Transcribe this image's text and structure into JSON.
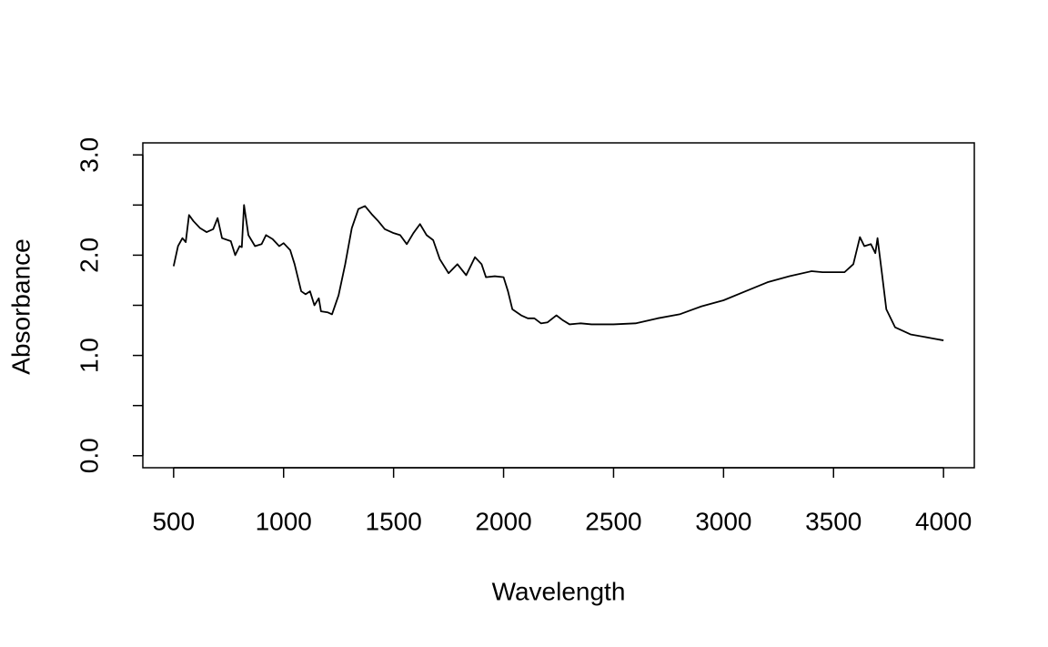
{
  "chart_data": {
    "type": "line",
    "xlabel": "Wavelength",
    "ylabel": "Absorbance",
    "x": [
      500,
      520,
      540,
      555,
      570,
      590,
      620,
      650,
      680,
      700,
      720,
      760,
      780,
      800,
      810,
      820,
      840,
      870,
      900,
      920,
      950,
      980,
      1000,
      1030,
      1050,
      1080,
      1100,
      1120,
      1140,
      1160,
      1170,
      1200,
      1220,
      1250,
      1280,
      1310,
      1340,
      1370,
      1400,
      1430,
      1460,
      1500,
      1530,
      1560,
      1590,
      1620,
      1650,
      1680,
      1710,
      1750,
      1790,
      1830,
      1870,
      1900,
      1920,
      1960,
      2000,
      2020,
      2040,
      2080,
      2110,
      2140,
      2170,
      2200,
      2240,
      2270,
      2300,
      2350,
      2400,
      2500,
      2600,
      2700,
      2800,
      2900,
      3000,
      3100,
      3200,
      3300,
      3400,
      3450,
      3550,
      3590,
      3620,
      3640,
      3670,
      3690,
      3700,
      3720,
      3740,
      3780,
      3850,
      3950,
      4000
    ],
    "series": [
      {
        "color": "#000000",
        "values": [
          1.89,
          2.09,
          2.17,
          2.13,
          2.4,
          2.34,
          2.27,
          2.23,
          2.26,
          2.37,
          2.17,
          2.14,
          2.0,
          2.09,
          2.08,
          2.5,
          2.2,
          2.09,
          2.11,
          2.2,
          2.16,
          2.09,
          2.12,
          2.05,
          1.91,
          1.64,
          1.61,
          1.64,
          1.5,
          1.57,
          1.44,
          1.43,
          1.41,
          1.6,
          1.91,
          2.27,
          2.46,
          2.49,
          2.41,
          2.34,
          2.26,
          2.22,
          2.2,
          2.11,
          2.22,
          2.31,
          2.2,
          2.15,
          1.96,
          1.82,
          1.91,
          1.8,
          1.98,
          1.91,
          1.78,
          1.79,
          1.78,
          1.64,
          1.46,
          1.4,
          1.37,
          1.37,
          1.32,
          1.33,
          1.4,
          1.35,
          1.31,
          1.32,
          1.31,
          1.31,
          1.32,
          1.37,
          1.41,
          1.49,
          1.55,
          1.64,
          1.73,
          1.79,
          1.84,
          1.83,
          1.83,
          1.91,
          2.18,
          2.09,
          2.11,
          2.02,
          2.17,
          1.82,
          1.46,
          1.28,
          1.21,
          1.17,
          1.15
        ]
      }
    ],
    "xlim": [
      360,
      4140
    ],
    "ylim": [
      -0.12,
      3.12
    ],
    "xticks": [
      500,
      1000,
      1500,
      2000,
      2500,
      3000,
      3500,
      4000
    ],
    "yticks": [
      {
        "value": 0,
        "label": "0.0"
      },
      {
        "value": 0.5,
        "label": null
      },
      {
        "value": 1,
        "label": "1.0"
      },
      {
        "value": 1.5,
        "label": null
      },
      {
        "value": 2,
        "label": "2.0"
      },
      {
        "value": 2.5,
        "label": null
      },
      {
        "value": 3,
        "label": "3.0"
      }
    ]
  }
}
